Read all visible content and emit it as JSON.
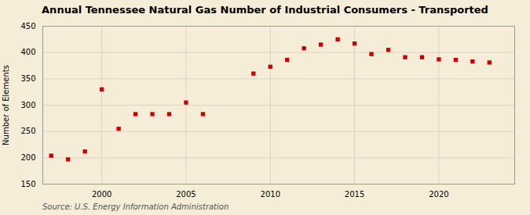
{
  "chart_data": {
    "type": "scatter",
    "title": "Annual Tennessee Natural Gas Number of Industrial Consumers - Transported",
    "ylabel": "Number of Elements",
    "annotations": [
      "Source: U.S. Energy Information Administration"
    ],
    "x": [
      1997,
      1998,
      1999,
      2000,
      2001,
      2002,
      2003,
      2004,
      2005,
      2006,
      2009,
      2010,
      2011,
      2012,
      2013,
      2014,
      2015,
      2016,
      2017,
      2018,
      2019,
      2020,
      2021,
      2022,
      2023
    ],
    "values": [
      204,
      197,
      212,
      330,
      255,
      283,
      283,
      283,
      305,
      283,
      360,
      373,
      386,
      408,
      415,
      425,
      417,
      397,
      405,
      391,
      391,
      387,
      386,
      383,
      381
    ],
    "color": "#cc0000",
    "marker": "square",
    "xlim": [
      1996.5,
      2024.5
    ],
    "ylim": [
      150,
      450
    ],
    "xticks": [
      2000,
      2005,
      2010,
      2015,
      2020
    ],
    "yticks": [
      150,
      200,
      250,
      300,
      350,
      400,
      450
    ],
    "grid": true
  }
}
